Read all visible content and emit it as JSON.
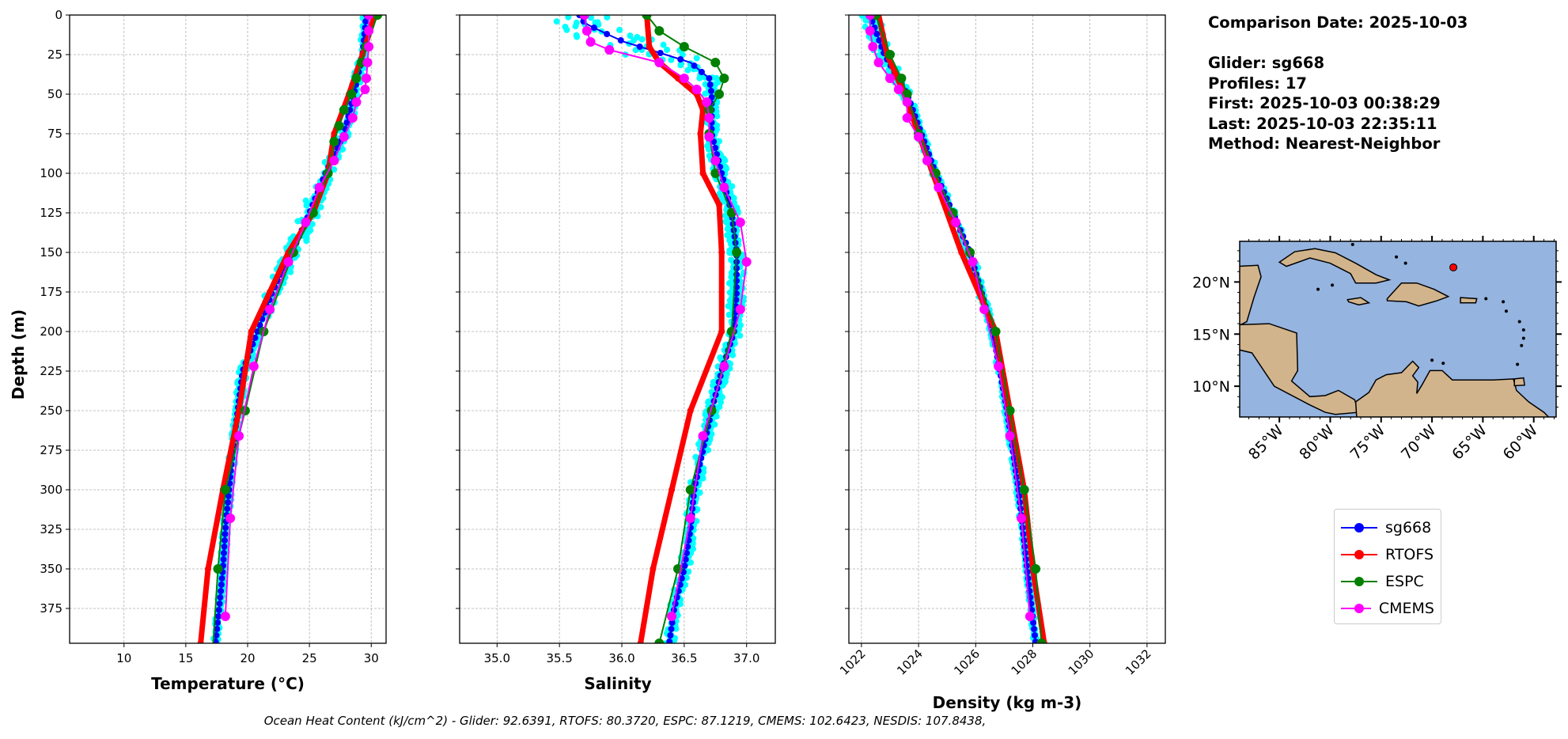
{
  "info": {
    "comparison_date": "Comparison Date: 2025-10-03",
    "glider": "Glider: sg668",
    "profiles": "Profiles: 17",
    "first": "First: 2025-10-03 00:38:29",
    "last": "Last: 2025-10-03 22:35:11",
    "method": "Method: Nearest-Neighbor"
  },
  "caption": "Ocean Heat Content (kJ/cm^2) - Glider: 92.6391,  RTOFS: 80.3720,  ESPC: 87.1219,  CMEMS: 102.6423,  NESDIS: 107.8438,",
  "legend": [
    {
      "label": "sg668",
      "color": "#0000ff"
    },
    {
      "label": "RTOFS",
      "color": "#ff0000"
    },
    {
      "label": "ESPC",
      "color": "#008000"
    },
    {
      "label": "CMEMS",
      "color": "#ff00ff"
    }
  ],
  "colors": {
    "profiles": "#00ffff",
    "sg668": "#0000ff",
    "RTOFS": "#ff0000",
    "ESPC": "#008000",
    "CMEMS": "#ff00ff",
    "ocean": "#95b4e0",
    "land": "#d2b48c"
  },
  "chart_data": [
    {
      "type": "line",
      "xlabel": "Temperature (°C)",
      "ylabel": "Depth (m)",
      "xlim": [
        5.6,
        31.2
      ],
      "ylim": [
        397,
        0
      ],
      "xticks": [
        "10",
        "15",
        "20",
        "25",
        "30"
      ],
      "yticks": [
        "0",
        "25",
        "50",
        "75",
        "100",
        "125",
        "150",
        "175",
        "200",
        "225",
        "250",
        "275",
        "300",
        "325",
        "350",
        "375"
      ],
      "grid": true,
      "profile_spread": [
        [
          0,
          0.3
        ],
        [
          25,
          0.3
        ],
        [
          50,
          0.4
        ],
        [
          75,
          0.4
        ],
        [
          100,
          0.5
        ],
        [
          125,
          0.8
        ],
        [
          150,
          0.7
        ],
        [
          175,
          0.6
        ],
        [
          200,
          0.4
        ],
        [
          250,
          0.3
        ],
        [
          397,
          0.2
        ]
      ],
      "series": [
        {
          "name": "sg668",
          "depth": [
            0,
            25,
            50,
            75,
            100,
            125,
            150,
            175,
            200,
            225,
            250,
            275,
            300,
            325,
            350,
            375,
            397
          ],
          "values": [
            29.6,
            29.3,
            28.6,
            27.8,
            26.3,
            25.0,
            23.6,
            22.0,
            20.8,
            19.6,
            19.2,
            18.8,
            18.5,
            18.2,
            18.0,
            17.7,
            17.4
          ]
        },
        {
          "name": "RTOFS",
          "depth": [
            0,
            25,
            50,
            75,
            100,
            125,
            150,
            175,
            200,
            250,
            300,
            350,
            397
          ],
          "values": [
            30.3,
            29.3,
            28.2,
            27.0,
            26.5,
            25.3,
            23.3,
            21.8,
            20.3,
            19.3,
            18.0,
            16.8,
            16.2
          ]
        },
        {
          "name": "ESPC",
          "depth": [
            0,
            20,
            30,
            40,
            50,
            60,
            70,
            80,
            100,
            125,
            150,
            200,
            250,
            300,
            350,
            400
          ],
          "values": [
            30.5,
            29.6,
            29.2,
            28.8,
            28.4,
            27.8,
            27.4,
            27.0,
            26.5,
            25.3,
            23.7,
            21.3,
            19.8,
            18.2,
            17.6,
            17.2
          ]
        },
        {
          "name": "CMEMS",
          "depth": [
            0,
            10,
            20,
            30,
            40,
            47,
            55,
            65,
            77,
            92,
            109,
            131,
            156,
            186,
            222,
            266,
            318,
            380
          ],
          "values": [
            29.8,
            29.8,
            29.8,
            29.7,
            29.6,
            29.5,
            28.8,
            28.5,
            27.8,
            27.0,
            25.8,
            24.7,
            23.3,
            21.8,
            20.5,
            19.3,
            18.6,
            18.2
          ]
        }
      ]
    },
    {
      "type": "line",
      "xlabel": "Salinity",
      "ylabel": "",
      "xlim": [
        34.7,
        37.23
      ],
      "ylim": [
        397,
        0
      ],
      "xticks": [
        "35.0",
        "35.5",
        "36.0",
        "36.5",
        "37.0"
      ],
      "grid": true,
      "profile_spread": [
        [
          0,
          0.25
        ],
        [
          25,
          0.3
        ],
        [
          30,
          0.1
        ],
        [
          50,
          0.05
        ],
        [
          100,
          0.06
        ],
        [
          150,
          0.06
        ],
        [
          200,
          0.06
        ],
        [
          250,
          0.05
        ],
        [
          397,
          0.04
        ]
      ],
      "series": [
        {
          "name": "sg668",
          "depth": [
            0,
            5,
            12,
            17,
            25,
            30,
            40,
            50,
            75,
            100,
            125,
            150,
            175,
            200,
            225,
            250,
            275,
            300,
            325,
            350,
            375,
            397
          ],
          "values": [
            35.66,
            35.7,
            35.88,
            36.02,
            36.35,
            36.55,
            36.7,
            36.72,
            36.72,
            36.8,
            36.88,
            36.92,
            36.92,
            36.9,
            36.8,
            36.72,
            36.65,
            36.58,
            36.55,
            36.5,
            36.42,
            36.38
          ]
        },
        {
          "name": "RTOFS",
          "depth": [
            0,
            20,
            30,
            40,
            50,
            60,
            75,
            100,
            120,
            150,
            200,
            250,
            300,
            350,
            397
          ],
          "values": [
            36.2,
            36.22,
            36.3,
            36.45,
            36.6,
            36.65,
            36.63,
            36.65,
            36.78,
            36.8,
            36.8,
            36.55,
            36.4,
            36.25,
            36.15
          ]
        },
        {
          "name": "ESPC",
          "depth": [
            0,
            10,
            20,
            30,
            40,
            50,
            60,
            75,
            100,
            125,
            150,
            200,
            250,
            300,
            350,
            397
          ],
          "values": [
            36.2,
            36.3,
            36.5,
            36.75,
            36.82,
            36.78,
            36.7,
            36.7,
            36.75,
            36.88,
            36.92,
            36.88,
            36.72,
            36.55,
            36.45,
            36.3
          ]
        },
        {
          "name": "CMEMS",
          "depth": [
            0,
            10,
            17,
            22,
            30,
            40,
            47,
            55,
            65,
            77,
            92,
            109,
            131,
            156,
            186,
            222,
            266,
            318,
            380
          ],
          "values": [
            35.7,
            35.72,
            35.75,
            35.9,
            36.3,
            36.5,
            36.6,
            36.68,
            36.7,
            36.7,
            36.75,
            36.82,
            36.95,
            37.0,
            36.95,
            36.82,
            36.65,
            36.55,
            36.4
          ]
        }
      ]
    },
    {
      "type": "line",
      "xlabel": "Density (kg m-3)",
      "ylabel": "",
      "xlim": [
        1021.56,
        1032.64
      ],
      "ylim": [
        397,
        0
      ],
      "xticks": [
        "1022",
        "1024",
        "1026",
        "1028",
        "1030",
        "1032"
      ],
      "grid": true,
      "profile_spread": [
        [
          0,
          0.3
        ],
        [
          25,
          0.3
        ],
        [
          50,
          0.15
        ],
        [
          100,
          0.1
        ],
        [
          150,
          0.15
        ],
        [
          200,
          0.1
        ],
        [
          397,
          0.06
        ]
      ],
      "series": [
        {
          "name": "sg668",
          "depth": [
            0,
            25,
            50,
            75,
            100,
            125,
            150,
            175,
            200,
            250,
            300,
            350,
            397
          ],
          "values": [
            1022.3,
            1022.8,
            1023.6,
            1024.1,
            1024.6,
            1025.2,
            1025.8,
            1026.2,
            1026.6,
            1027.1,
            1027.5,
            1027.8,
            1028.1
          ]
        },
        {
          "name": "RTOFS",
          "depth": [
            0,
            25,
            50,
            100,
            150,
            200,
            250,
            300,
            350,
            397
          ],
          "values": [
            1022.6,
            1022.9,
            1023.5,
            1024.5,
            1025.5,
            1026.7,
            1027.2,
            1027.7,
            1028.0,
            1028.4
          ]
        },
        {
          "name": "ESPC",
          "depth": [
            0,
            25,
            40,
            50,
            75,
            100,
            125,
            150,
            200,
            250,
            300,
            350,
            397
          ],
          "values": [
            1022.5,
            1023.0,
            1023.4,
            1023.6,
            1024.0,
            1024.6,
            1025.2,
            1025.8,
            1026.7,
            1027.2,
            1027.7,
            1028.1,
            1028.3
          ]
        },
        {
          "name": "CMEMS",
          "depth": [
            0,
            10,
            20,
            30,
            40,
            47,
            55,
            65,
            77,
            92,
            109,
            131,
            156,
            186,
            222,
            266,
            318,
            380
          ],
          "values": [
            1022.3,
            1022.3,
            1022.4,
            1022.6,
            1023.0,
            1023.3,
            1023.6,
            1023.6,
            1024.0,
            1024.3,
            1024.7,
            1025.3,
            1025.9,
            1026.3,
            1026.8,
            1027.2,
            1027.6,
            1027.9
          ]
        }
      ]
    },
    {
      "type": "map",
      "lon_range": [
        -88.9,
        -57.8
      ],
      "lat_range": [
        7.05,
        23.9
      ],
      "lon_ticks": [
        "85°W",
        "80°W",
        "75°W",
        "70°W",
        "65°W",
        "60°W"
      ],
      "lat_ticks": [
        "10°N",
        "15°N",
        "20°N"
      ],
      "glider_position": {
        "lon": -67.9,
        "lat": 21.4
      }
    }
  ]
}
